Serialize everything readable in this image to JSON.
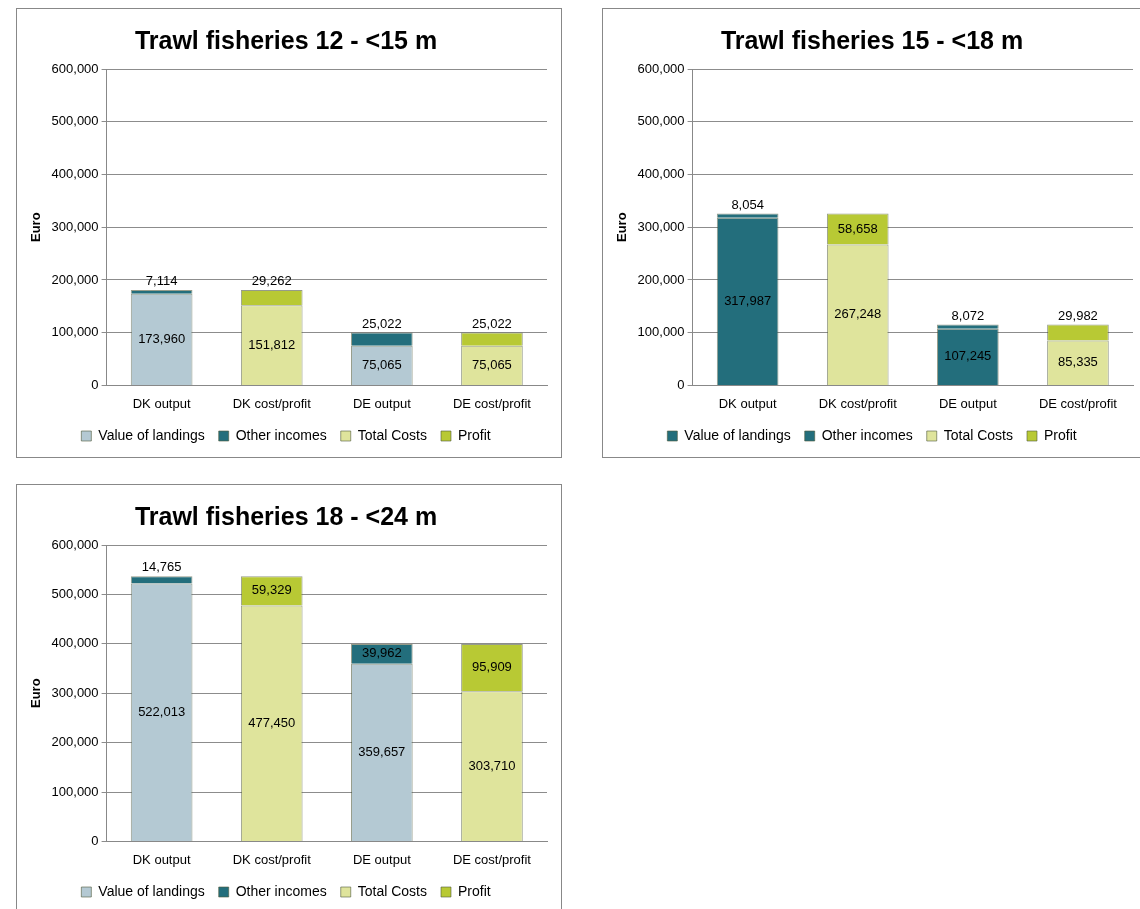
{
  "chart_data": [
    {
      "type": "bar",
      "stacked": true,
      "title": "Trawl fisheries 12 - <15 m",
      "ylabel": "Euro",
      "categories": [
        "DK output",
        "DK cost/profit",
        "DE output",
        "DE cost/profit"
      ],
      "ylim": [
        0,
        600000
      ],
      "yticks": [
        {
          "value": 0,
          "label": "0"
        },
        {
          "value": 100000,
          "label": "100,000"
        },
        {
          "value": 200000,
          "label": "200,000"
        },
        {
          "value": 300000,
          "label": "300,000"
        },
        {
          "value": 400000,
          "label": "400,000"
        },
        {
          "value": 500000,
          "label": "500,000"
        },
        {
          "value": 600000,
          "label": "600,000"
        }
      ],
      "grid": "y",
      "legend": "bottom",
      "series": [
        {
          "name": "Value of landings",
          "color": "#b4c9d3",
          "values": [
            173960,
            null,
            75065,
            null
          ],
          "value_labels": [
            "173,960",
            null,
            "75,065",
            null
          ]
        },
        {
          "name": "Other incomes",
          "color": "#236e7c",
          "values": [
            7114,
            null,
            25022,
            null
          ],
          "value_labels": [
            "7,114",
            null,
            "25,022",
            null
          ]
        },
        {
          "name": "Total Costs",
          "color": "#dfe49c",
          "values": [
            null,
            151812,
            null,
            75065
          ],
          "value_labels": [
            null,
            "151,812",
            null,
            "75,065"
          ]
        },
        {
          "name": "Profit",
          "color": "#b8c934",
          "values": [
            null,
            29262,
            null,
            25022
          ],
          "value_labels": [
            null,
            "29,262",
            null,
            "25,022"
          ]
        }
      ]
    },
    {
      "type": "bar",
      "stacked": true,
      "title": "Trawl fisheries 15 - <18 m",
      "ylabel": "Euro",
      "categories": [
        "DK output",
        "DK cost/profit",
        "DE output",
        "DE cost/profit"
      ],
      "ylim": [
        0,
        600000
      ],
      "yticks": [
        {
          "value": 0,
          "label": "0"
        },
        {
          "value": 100000,
          "label": "100,000"
        },
        {
          "value": 200000,
          "label": "200,000"
        },
        {
          "value": 300000,
          "label": "300,000"
        },
        {
          "value": 400000,
          "label": "400,000"
        },
        {
          "value": 500000,
          "label": "500,000"
        },
        {
          "value": 600000,
          "label": "600,000"
        }
      ],
      "grid": "y",
      "legend": "bottom",
      "series": [
        {
          "name": "Value of landings",
          "color": "#236e7c",
          "values": [
            317987,
            null,
            107245,
            null
          ],
          "value_labels": [
            "317,987",
            null,
            "107,245",
            null
          ]
        },
        {
          "name": "Other incomes",
          "color": "#236e7c",
          "values": [
            8054,
            null,
            8072,
            null
          ],
          "value_labels": [
            "8,054",
            null,
            "8,072",
            null
          ]
        },
        {
          "name": "Total Costs",
          "color": "#dfe49c",
          "values": [
            null,
            267248,
            null,
            85335
          ],
          "value_labels": [
            null,
            "267,248",
            null,
            "85,335"
          ]
        },
        {
          "name": "Profit",
          "color": "#b8c934",
          "values": [
            null,
            58658,
            null,
            29982
          ],
          "value_labels": [
            null,
            "58,658",
            null,
            "29,982"
          ]
        }
      ]
    },
    {
      "type": "bar",
      "stacked": true,
      "title": "Trawl fisheries 18 - <24 m",
      "ylabel": "Euro",
      "categories": [
        "DK output",
        "DK cost/profit",
        "DE output",
        "DE cost/profit"
      ],
      "ylim": [
        0,
        600000
      ],
      "yticks": [
        {
          "value": 0,
          "label": "0"
        },
        {
          "value": 100000,
          "label": "100,000"
        },
        {
          "value": 200000,
          "label": "200,000"
        },
        {
          "value": 300000,
          "label": "300,000"
        },
        {
          "value": 400000,
          "label": "400,000"
        },
        {
          "value": 500000,
          "label": "500,000"
        },
        {
          "value": 600000,
          "label": "600,000"
        }
      ],
      "grid": "y",
      "legend": "bottom",
      "series": [
        {
          "name": "Value of landings",
          "color": "#b4c9d3",
          "values": [
            522013,
            null,
            359657,
            null
          ],
          "value_labels": [
            "522,013",
            null,
            "359,657",
            null
          ]
        },
        {
          "name": "Other incomes",
          "color": "#236e7c",
          "values": [
            14765,
            null,
            39962,
            null
          ],
          "value_labels": [
            "14,765",
            null,
            "39,962",
            null
          ]
        },
        {
          "name": "Total Costs",
          "color": "#dfe49c",
          "values": [
            null,
            477450,
            null,
            303710
          ],
          "value_labels": [
            null,
            "477,450",
            null,
            "303,710"
          ]
        },
        {
          "name": "Profit",
          "color": "#b8c934",
          "values": [
            null,
            59329,
            null,
            95909
          ],
          "value_labels": [
            null,
            "59,329",
            null,
            "95,909"
          ]
        }
      ]
    }
  ]
}
